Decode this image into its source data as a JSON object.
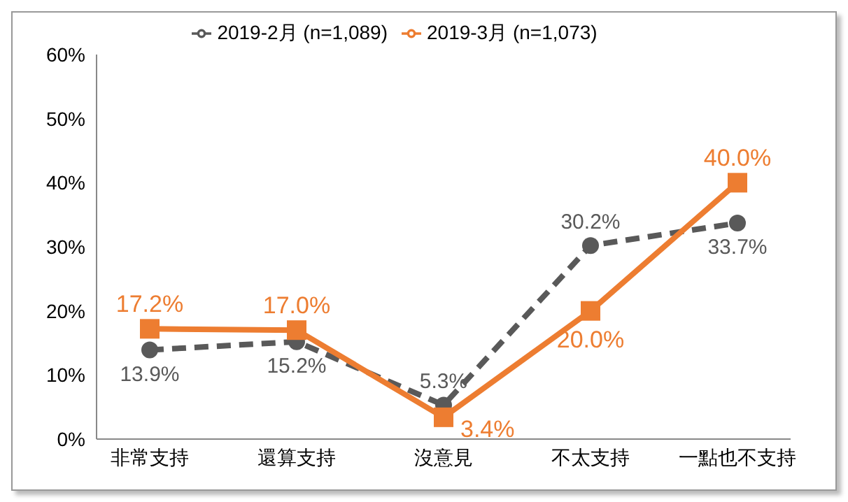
{
  "chart_data": {
    "type": "line",
    "categories": [
      "非常支持",
      "還算支持",
      "沒意見",
      "不太支持",
      "一點也不支持"
    ],
    "series": [
      {
        "name": "2019-2月 (n=1,089)",
        "color": "#595959",
        "values": [
          13.9,
          15.2,
          5.3,
          30.2,
          33.7
        ],
        "value_labels": [
          "13.9%",
          "15.2%",
          "5.3%",
          "30.2%",
          "33.7%"
        ],
        "marker": "circle",
        "line_style": "dashed"
      },
      {
        "name": "2019-3月 (n=1,073)",
        "color": "#ed7d31",
        "values": [
          17.2,
          17.0,
          3.4,
          20.0,
          40.0
        ],
        "value_labels": [
          "17.2%",
          "17.0%",
          "3.4%",
          "20.0%",
          "40.0%"
        ],
        "marker": "square",
        "line_style": "solid"
      }
    ],
    "ylim": [
      0,
      60
    ],
    "yticks": [
      {
        "value": 0,
        "label": "0%"
      },
      {
        "value": 10,
        "label": "10%"
      },
      {
        "value": 20,
        "label": "20%"
      },
      {
        "value": 30,
        "label": "30%"
      },
      {
        "value": 40,
        "label": "40%"
      },
      {
        "value": 50,
        "label": "50%"
      },
      {
        "value": 60,
        "label": "60%"
      }
    ],
    "grid": false,
    "legend": "top"
  }
}
